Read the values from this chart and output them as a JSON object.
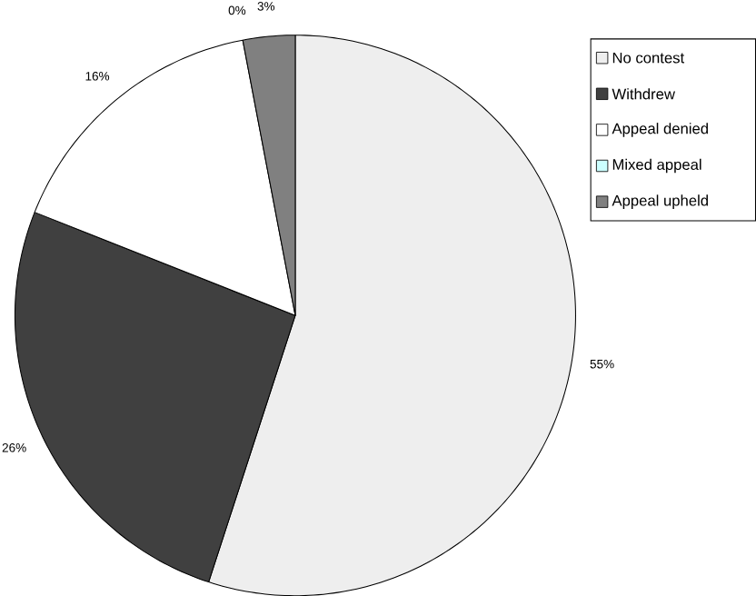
{
  "chart_data": {
    "type": "pie",
    "categories": [
      "No contest",
      "Withdrew",
      "Appeal denied",
      "Mixed appeal",
      "Appeal upheld"
    ],
    "values": [
      55,
      26,
      16,
      0,
      3
    ],
    "value_labels": [
      "55%",
      "26%",
      "16%",
      "0%",
      "3%"
    ],
    "colors": [
      "#eeeeee",
      "#404040",
      "#ffffff",
      "#ccffff",
      "#808080"
    ],
    "legend": "top right"
  }
}
